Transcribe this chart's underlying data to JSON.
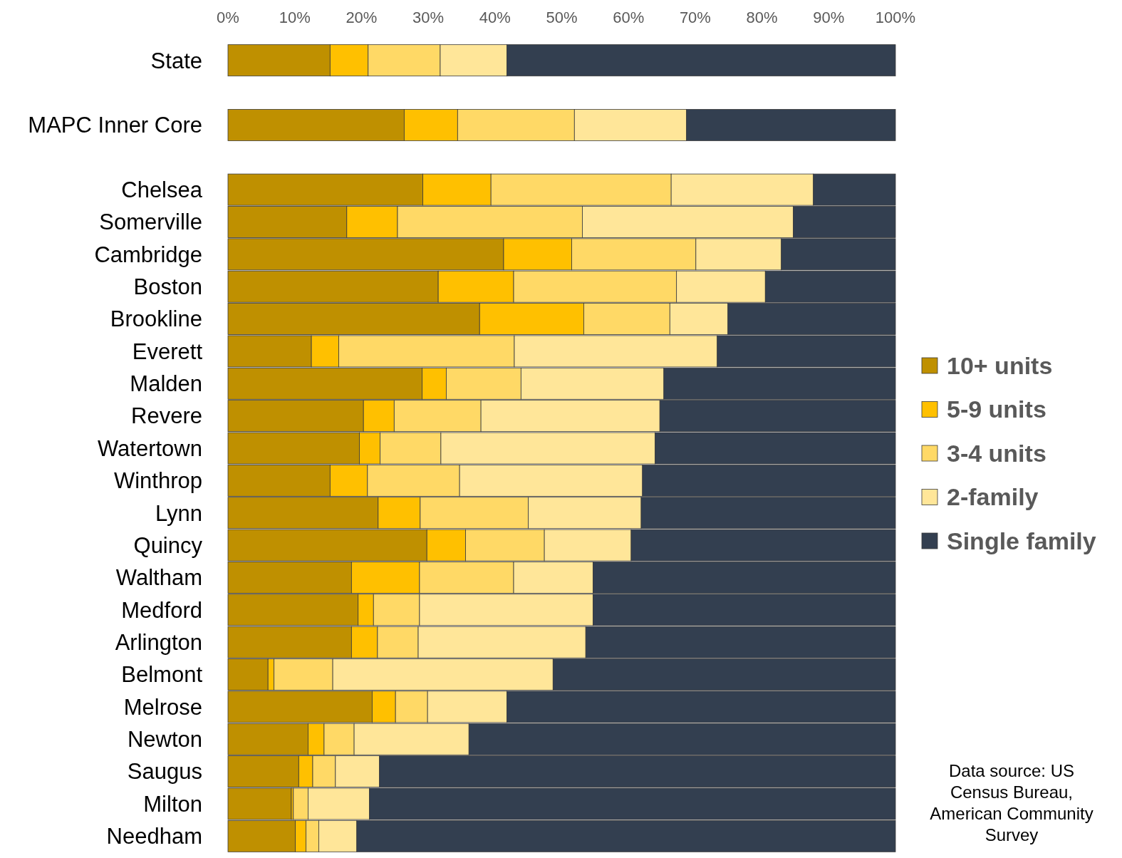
{
  "chart_data": {
    "type": "bar",
    "orientation": "horizontal",
    "stacked": true,
    "categories": [
      "State",
      null,
      "MAPC Inner Core",
      null,
      "Chelsea",
      "Somerville",
      "Cambridge",
      "Boston",
      "Brookline",
      "Everett",
      "Malden",
      "Revere",
      "Watertown",
      "Winthrop",
      "Lynn",
      "Quincy",
      "Waltham",
      "Medford",
      "Arlington",
      "Belmont",
      "Melrose",
      "Newton",
      "Saugus",
      "Milton",
      "Needham"
    ],
    "series": [
      {
        "name": "10+ units",
        "color": "#bf9000",
        "values": [
          15.3,
          null,
          26.4,
          null,
          29.2,
          17.8,
          41.3,
          31.5,
          37.7,
          12.5,
          29.1,
          20.3,
          19.7,
          15.3,
          22.5,
          29.8,
          18.5,
          19.5,
          18.5,
          6.0,
          21.6,
          12.0,
          10.6,
          9.5,
          10.1
        ]
      },
      {
        "name": "5-9 units",
        "color": "#ffc000",
        "values": [
          5.7,
          null,
          8.0,
          null,
          10.2,
          7.6,
          10.2,
          11.3,
          15.6,
          4.1,
          3.6,
          4.6,
          3.1,
          5.6,
          6.3,
          5.8,
          10.2,
          2.3,
          3.9,
          0.9,
          3.5,
          2.4,
          2.1,
          0.3,
          1.6
        ]
      },
      {
        "name": "3-4 units",
        "color": "#ffd966",
        "values": [
          10.8,
          null,
          17.5,
          null,
          27.0,
          27.7,
          18.6,
          24.4,
          12.9,
          26.3,
          11.2,
          13.0,
          9.1,
          13.8,
          16.2,
          11.8,
          14.1,
          6.9,
          6.1,
          8.8,
          4.8,
          4.5,
          3.4,
          2.2,
          1.9
        ]
      },
      {
        "name": "2-family",
        "color": "#ffe699",
        "values": [
          10.0,
          null,
          16.8,
          null,
          21.3,
          31.6,
          12.8,
          13.3,
          8.7,
          30.4,
          21.4,
          26.8,
          32.1,
          27.4,
          16.9,
          13.0,
          11.9,
          26.0,
          25.1,
          33.0,
          11.9,
          17.2,
          6.6,
          9.2,
          5.7
        ]
      },
      {
        "name": "Single family",
        "color": "#333f50",
        "values": [
          58.2,
          null,
          31.3,
          null,
          12.3,
          15.3,
          17.1,
          19.5,
          25.1,
          26.7,
          34.7,
          35.3,
          36.0,
          37.9,
          38.1,
          39.6,
          45.3,
          45.3,
          46.4,
          51.3,
          58.2,
          63.9,
          77.3,
          78.8,
          80.7
        ]
      }
    ],
    "xlim": [
      0,
      100
    ],
    "xticks": [
      {
        "value": 0,
        "label": "0%"
      },
      {
        "value": 10,
        "label": "10%"
      },
      {
        "value": 20,
        "label": "20%"
      },
      {
        "value": 30,
        "label": "30%"
      },
      {
        "value": 40,
        "label": "40%"
      },
      {
        "value": 50,
        "label": "50%"
      },
      {
        "value": 60,
        "label": "60%"
      },
      {
        "value": 70,
        "label": "70%"
      },
      {
        "value": 80,
        "label": "80%"
      },
      {
        "value": 90,
        "label": "90%"
      },
      {
        "value": 100,
        "label": "100%"
      }
    ],
    "legend": "right",
    "grid": false,
    "annotations": [
      "Data source: US Census Bureau, American Community Survey"
    ]
  }
}
